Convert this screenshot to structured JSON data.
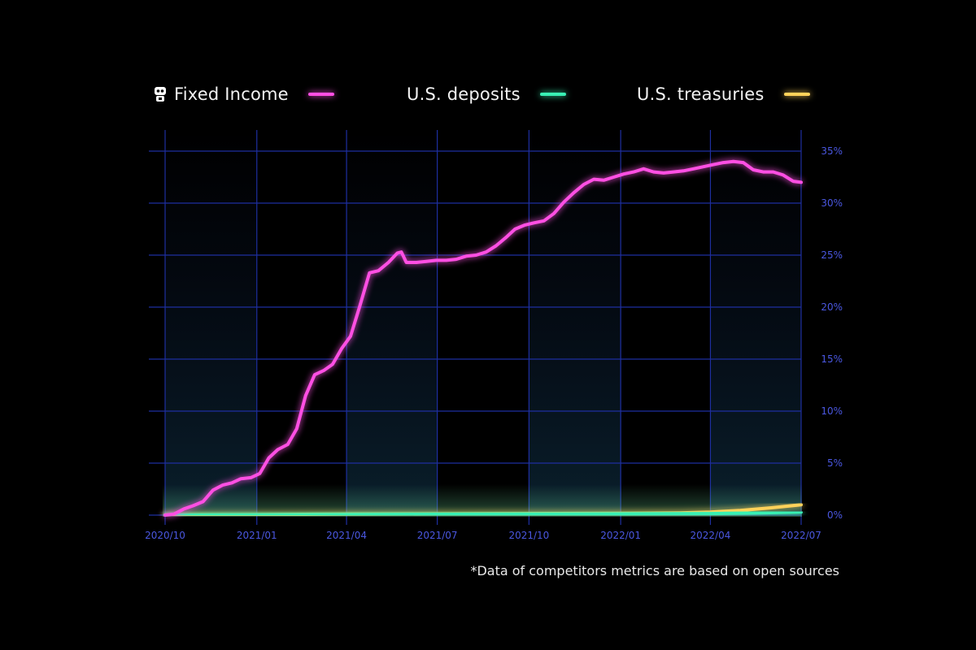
{
  "legend": [
    {
      "label": "Fixed Income",
      "color": "#ff4fe3",
      "icon": "robot-icon"
    },
    {
      "label": "U.S. deposits",
      "color": "#39f0b4"
    },
    {
      "label": "U.S. treasuries",
      "color": "#ffd25a"
    }
  ],
  "footnote": "*Data of competitors metrics are based on open sources",
  "chart_data": {
    "type": "line",
    "x_ticks": [
      "2020/10",
      "2021/01",
      "2021/04",
      "2021/07",
      "2021/10",
      "2022/01",
      "2022/04",
      "2022/07"
    ],
    "y_ticks": [
      "0%",
      "5%",
      "10%",
      "15%",
      "20%",
      "25%",
      "30%",
      "35%"
    ],
    "xlim": [
      "2020-10-01",
      "2022-07-01"
    ],
    "ylim": [
      0,
      35
    ],
    "grid": true,
    "series": [
      {
        "name": "Fixed Income",
        "color": "#ff4fe3",
        "points": [
          [
            "2020-10-01",
            0
          ],
          [
            "2020-10-10",
            0.1
          ],
          [
            "2020-10-20",
            0.6
          ],
          [
            "2020-10-29",
            0.9
          ],
          [
            "2020-11-08",
            1.3
          ],
          [
            "2020-11-18",
            2.4
          ],
          [
            "2020-11-28",
            2.9
          ],
          [
            "2020-12-07",
            3.1
          ],
          [
            "2020-12-16",
            3.5
          ],
          [
            "2020-12-26",
            3.6
          ],
          [
            "2021-01-04",
            4.0
          ],
          [
            "2021-01-13",
            5.5
          ],
          [
            "2021-01-22",
            6.3
          ],
          [
            "2021-02-01",
            6.8
          ],
          [
            "2021-02-10",
            8.3
          ],
          [
            "2021-02-19",
            11.5
          ],
          [
            "2021-02-28",
            13.5
          ],
          [
            "2021-03-09",
            13.9
          ],
          [
            "2021-03-18",
            14.5
          ],
          [
            "2021-03-27",
            16.0
          ],
          [
            "2021-04-05",
            17.2
          ],
          [
            "2021-04-14",
            20.0
          ],
          [
            "2021-04-24",
            23.3
          ],
          [
            "2021-05-03",
            23.5
          ],
          [
            "2021-05-13",
            24.3
          ],
          [
            "2021-05-22",
            25.2
          ],
          [
            "2021-05-26",
            25.3
          ],
          [
            "2021-05-31",
            24.3
          ],
          [
            "2021-06-10",
            24.3
          ],
          [
            "2021-06-20",
            24.4
          ],
          [
            "2021-06-30",
            24.5
          ],
          [
            "2021-07-10",
            24.5
          ],
          [
            "2021-07-20",
            24.6
          ],
          [
            "2021-07-30",
            24.9
          ],
          [
            "2021-08-09",
            25.0
          ],
          [
            "2021-08-19",
            25.3
          ],
          [
            "2021-08-29",
            25.9
          ],
          [
            "2021-09-08",
            26.7
          ],
          [
            "2021-09-17",
            27.5
          ],
          [
            "2021-09-27",
            27.9
          ],
          [
            "2021-10-06",
            28.1
          ],
          [
            "2021-10-16",
            28.3
          ],
          [
            "2021-10-26",
            29.0
          ],
          [
            "2021-11-05",
            30.1
          ],
          [
            "2021-11-15",
            31.0
          ],
          [
            "2021-11-25",
            31.8
          ],
          [
            "2021-12-05",
            32.3
          ],
          [
            "2021-12-15",
            32.2
          ],
          [
            "2021-12-25",
            32.5
          ],
          [
            "2022-01-04",
            32.8
          ],
          [
            "2022-01-14",
            33.0
          ],
          [
            "2022-01-24",
            33.3
          ],
          [
            "2022-02-03",
            33.0
          ],
          [
            "2022-02-13",
            32.9
          ],
          [
            "2022-02-23",
            33.0
          ],
          [
            "2022-03-05",
            33.1
          ],
          [
            "2022-03-15",
            33.3
          ],
          [
            "2022-03-25",
            33.5
          ],
          [
            "2022-04-04",
            33.7
          ],
          [
            "2022-04-14",
            33.9
          ],
          [
            "2022-04-24",
            34.0
          ],
          [
            "2022-05-04",
            33.9
          ],
          [
            "2022-05-14",
            33.2
          ],
          [
            "2022-05-24",
            33.0
          ],
          [
            "2022-06-03",
            33.0
          ],
          [
            "2022-06-13",
            32.7
          ],
          [
            "2022-06-23",
            32.1
          ],
          [
            "2022-07-01",
            32.0
          ]
        ]
      },
      {
        "name": "U.S. deposits",
        "color": "#39f0b4",
        "points": [
          [
            "2020-10-01",
            0
          ],
          [
            "2021-01-01",
            0.02
          ],
          [
            "2021-04-01",
            0.05
          ],
          [
            "2021-07-01",
            0.08
          ],
          [
            "2021-10-01",
            0.1
          ],
          [
            "2022-01-01",
            0.12
          ],
          [
            "2022-04-01",
            0.15
          ],
          [
            "2022-05-15",
            0.2
          ],
          [
            "2022-07-01",
            0.3
          ]
        ]
      },
      {
        "name": "U.S. treasuries",
        "color": "#ffd25a",
        "points": [
          [
            "2020-10-01",
            0.02
          ],
          [
            "2021-01-01",
            0.05
          ],
          [
            "2021-04-01",
            0.1
          ],
          [
            "2021-07-01",
            0.12
          ],
          [
            "2021-10-01",
            0.15
          ],
          [
            "2022-01-01",
            0.18
          ],
          [
            "2022-03-01",
            0.22
          ],
          [
            "2022-04-01",
            0.3
          ],
          [
            "2022-05-01",
            0.45
          ],
          [
            "2022-06-01",
            0.7
          ],
          [
            "2022-07-01",
            1.0
          ]
        ]
      }
    ]
  }
}
